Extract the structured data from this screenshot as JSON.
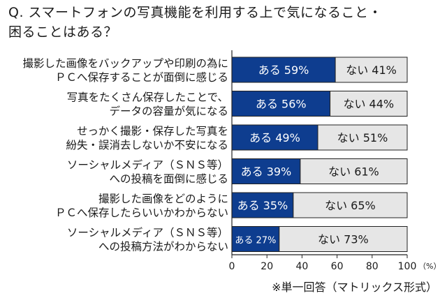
{
  "title_lines": [
    "Q. スマートフォンの写真機能を利用する上で気になること・",
    "困ることはある？"
  ],
  "note": "※単一回答（マトリックス形式）",
  "chart_data": {
    "type": "bar",
    "orientation": "horizontal",
    "stacked": true,
    "categories": [
      [
        "撮影した画像をバックアップや印刷の為に",
        "ＰＣへ保存することが面倒に感じる"
      ],
      [
        "写真をたくさん保存したことで、",
        "データの容量が気になる"
      ],
      [
        "せっかく撮影・保存した写真を",
        "紛失・誤消去しないか不安になる"
      ],
      [
        "ソーシャルメディア（ＳＮＳ等）",
        "への投稿を面倒に感じる"
      ],
      [
        "撮影した画像をどのように",
        "ＰＣへ保存したらいいかわからない"
      ],
      [
        "ソーシャルメディア（ＳＮＳ等）",
        "への投稿方法がわからない"
      ]
    ],
    "series": [
      {
        "name": "ある",
        "values": [
          59,
          56,
          49,
          39,
          35,
          27
        ],
        "color": "#0e3d8f",
        "text_color": "#ffffff"
      },
      {
        "name": "ない",
        "values": [
          41,
          44,
          51,
          61,
          65,
          73
        ],
        "color": "#e6e6e6",
        "text_color": "#1a1a1a"
      }
    ],
    "xlim": [
      0,
      100
    ],
    "xticks": [
      0,
      20,
      40,
      60,
      80,
      100
    ],
    "x_unit": "（%）",
    "grid": false
  }
}
